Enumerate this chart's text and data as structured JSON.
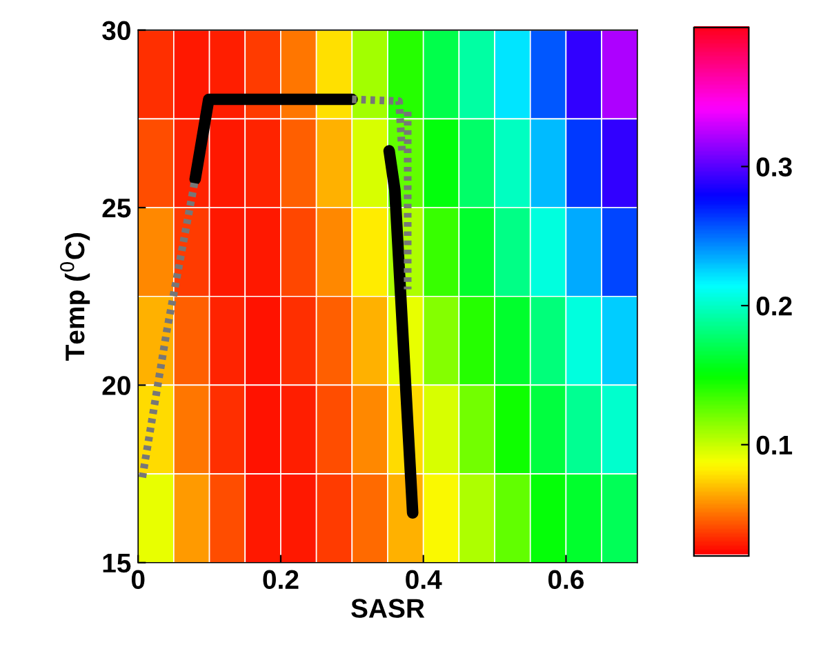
{
  "chart_data": {
    "type": "heatmap",
    "xlabel": "SASR",
    "ylabel": "Temp ($^{0}$C)",
    "cells": [
      [
        0.032,
        0.027,
        0.028,
        0.035,
        0.05,
        0.077,
        0.109,
        0.14,
        0.167,
        0.19,
        0.22,
        0.256,
        0.29,
        0.32
      ],
      [
        0.04,
        0.03,
        0.026,
        0.03,
        0.045,
        0.066,
        0.095,
        0.125,
        0.152,
        0.175,
        0.198,
        0.23,
        0.262,
        0.29
      ],
      [
        0.055,
        0.035,
        0.027,
        0.027,
        0.038,
        0.055,
        0.08,
        0.105,
        0.135,
        0.16,
        0.182,
        0.205,
        0.235,
        0.26
      ],
      [
        0.065,
        0.045,
        0.03,
        0.025,
        0.032,
        0.045,
        0.065,
        0.09,
        0.115,
        0.14,
        0.16,
        0.18,
        0.205,
        0.225
      ],
      [
        0.075,
        0.05,
        0.032,
        0.025,
        0.028,
        0.04,
        0.055,
        0.075,
        0.095,
        0.12,
        0.145,
        0.165,
        0.185,
        0.2
      ],
      [
        0.09,
        0.06,
        0.04,
        0.027,
        0.027,
        0.035,
        0.048,
        0.065,
        0.085,
        0.105,
        0.125,
        0.15,
        0.16,
        0.17
      ]
    ],
    "clim": [
      0.02,
      0.4
    ],
    "cticks": [
      0.1,
      0.2,
      0.3
    ],
    "xlim": [
      0,
      0.7
    ],
    "xticks": [
      0,
      0.2,
      0.4,
      0.6
    ],
    "ylim": [
      15,
      30
    ],
    "yticks": [
      15,
      20,
      25,
      30
    ],
    "series": [
      {
        "type": "line",
        "color": "#000000",
        "line_style": "solid",
        "x": [
          0.08,
          0.099,
          0.3
        ],
        "values": [
          25.8,
          28.05,
          28.05
        ]
      },
      {
        "type": "line",
        "color": "#000000",
        "line_style": "solid",
        "x": [
          0.352,
          0.36,
          0.385
        ],
        "values": [
          26.6,
          25.5,
          16.4
        ]
      },
      {
        "type": "line",
        "color": "#777777",
        "line_style": "dotted",
        "x": [
          0.006,
          0.04,
          0.08
        ],
        "values": [
          17.4,
          21.5,
          25.8
        ]
      },
      {
        "type": "line",
        "color": "#777777",
        "line_style": "dotted",
        "x": [
          0.3,
          0.366,
          0.37
        ],
        "values": [
          28.05,
          28.0,
          26.6
        ]
      },
      {
        "type": "line",
        "color": "#777777",
        "line_style": "dotted",
        "x": [
          0.378,
          0.378
        ],
        "values": [
          27.7,
          22.7
        ]
      }
    ]
  }
}
